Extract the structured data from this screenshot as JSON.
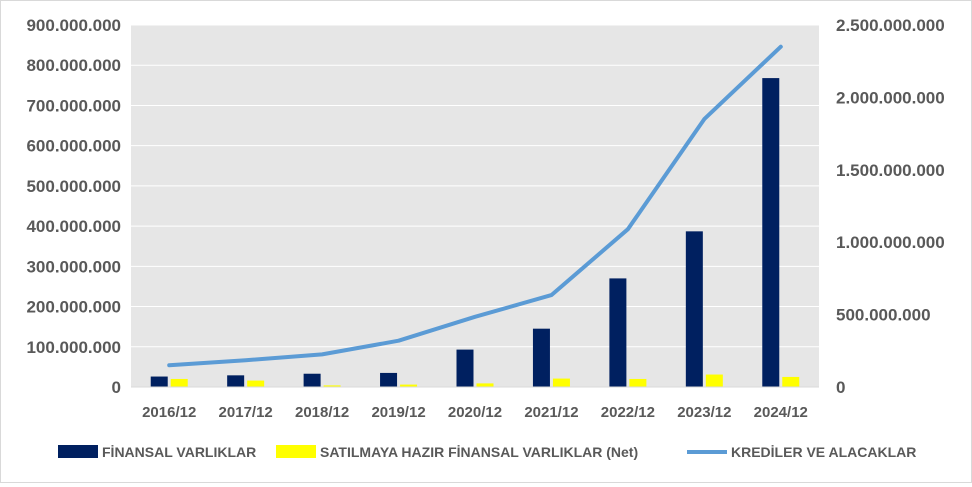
{
  "chart_data": {
    "type": "bar",
    "categories": [
      "2016/12",
      "2017/12",
      "2018/12",
      "2019/12",
      "2020/12",
      "2021/12",
      "2022/12",
      "2023/12",
      "2024/12"
    ],
    "series": [
      {
        "name": "FİNANSAL VARLIKLAR",
        "type": "bar",
        "axis": "left",
        "color": "#002060",
        "values": [
          26000000,
          29000000,
          33000000,
          35000000,
          93000000,
          145000000,
          270000000,
          387000000,
          768000000
        ]
      },
      {
        "name": "SATILMAYA HAZIR FİNANSAL VARLIKLAR (Net)",
        "type": "bar",
        "axis": "left",
        "color": "#ffff00",
        "values": [
          20000000,
          16000000,
          4000000,
          6000000,
          9000000,
          21000000,
          20000000,
          31000000,
          25000000
        ]
      },
      {
        "name": "KREDİLER VE ALACAKLAR",
        "type": "line",
        "axis": "right",
        "color": "#5b9bd5",
        "values": [
          150000000,
          185000000,
          225000000,
          320000000,
          485000000,
          635000000,
          1090000000,
          1850000000,
          2350000000
        ]
      }
    ],
    "y_left": {
      "ylim": [
        0,
        900000000
      ],
      "ticks": [
        "0",
        "100.000.000",
        "200.000.000",
        "300.000.000",
        "400.000.000",
        "500.000.000",
        "600.000.000",
        "700.000.000",
        "800.000.000",
        "900.000.000"
      ]
    },
    "y_right": {
      "ylim": [
        0,
        2500000000
      ],
      "ticks": [
        "0",
        "500.000.000",
        "1.000.000.000",
        "1.500.000.000",
        "2.000.000.000",
        "2.500.000.000"
      ]
    },
    "grid": true,
    "legend_position": "bottom",
    "plot_background": "#e6e6e6",
    "grid_color": "#ffffff"
  }
}
